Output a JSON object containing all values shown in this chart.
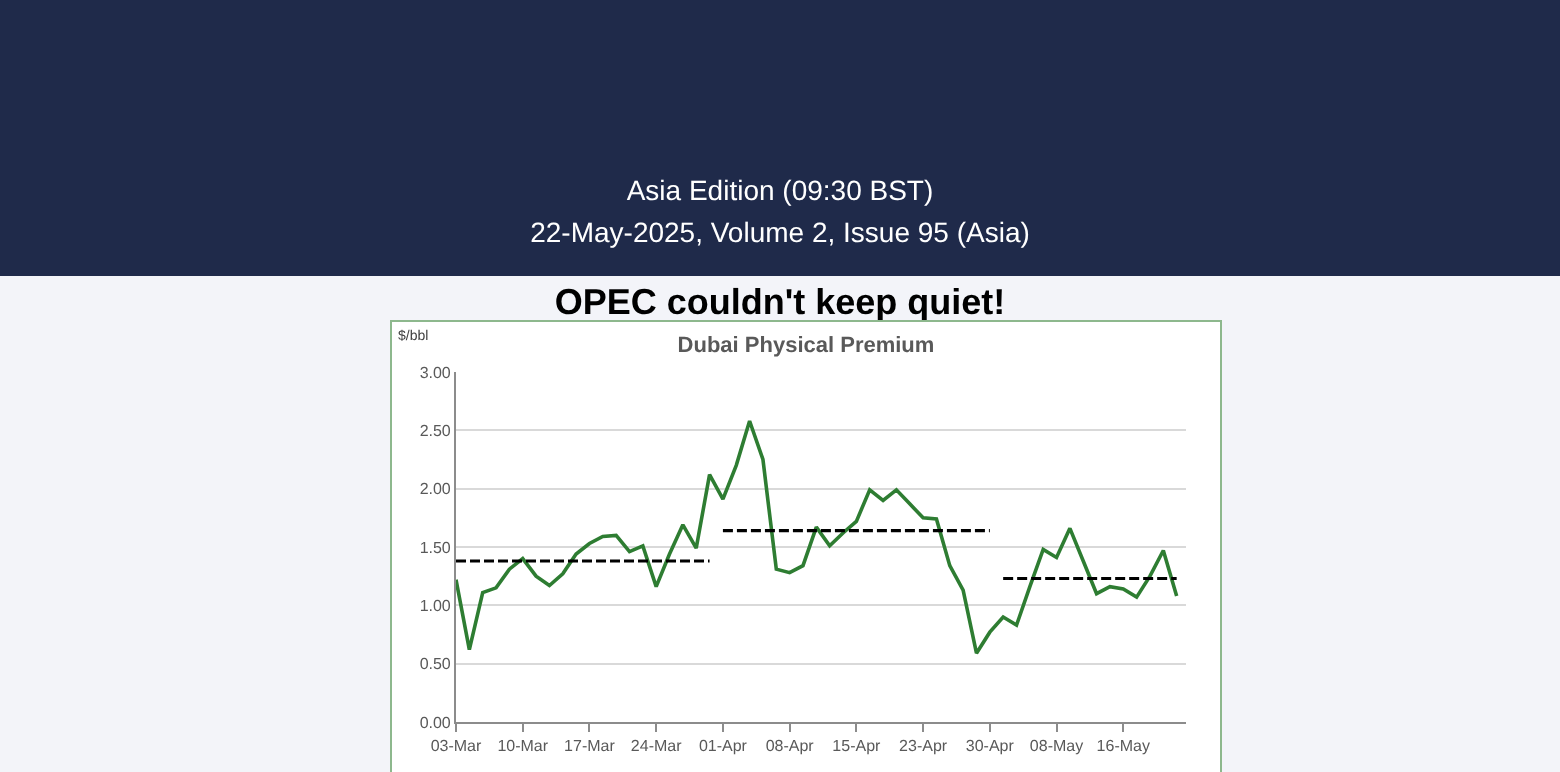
{
  "chart_data": {
    "type": "line",
    "title": "OPEC couldn't keep quiet!",
    "subtitle": "Dubai Physical Premium",
    "ylabel": "$/bbl",
    "annotations": [
      "Asia Edition (09:30 BST)",
      "22-May-2025, Volume 2, Issue 95 (Asia)"
    ],
    "categories": [
      "03-Mar",
      null,
      null,
      null,
      null,
      "10-Mar",
      null,
      null,
      null,
      null,
      "17-Mar",
      null,
      null,
      null,
      null,
      "24-Mar",
      null,
      null,
      null,
      null,
      "01-Apr",
      null,
      null,
      null,
      null,
      "08-Apr",
      null,
      null,
      null,
      null,
      "15-Apr",
      null,
      null,
      null,
      null,
      "23-Apr",
      null,
      null,
      null,
      null,
      "30-Apr",
      null,
      null,
      null,
      null,
      "08-May",
      null,
      null,
      null,
      null,
      "16-May",
      null,
      null,
      null,
      null
    ],
    "series": [
      {
        "color": "#2e7d32",
        "line_style": "solid",
        "values": [
          1.22,
          0.62,
          1.11,
          1.15,
          1.31,
          1.4,
          1.25,
          1.17,
          1.27,
          1.44,
          1.53,
          1.59,
          1.6,
          1.46,
          1.51,
          1.16,
          1.44,
          1.69,
          1.49,
          2.12,
          1.91,
          2.2,
          2.58,
          2.25,
          1.31,
          1.28,
          1.34,
          1.67,
          1.51,
          1.62,
          1.72,
          1.99,
          1.9,
          1.99,
          1.87,
          1.75,
          1.74,
          1.34,
          1.13,
          0.59,
          0.77,
          0.9,
          0.83,
          1.16,
          1.48,
          1.41,
          1.66,
          1.38,
          1.1,
          1.16,
          1.14,
          1.07,
          1.25,
          1.47,
          1.08
        ]
      },
      {
        "color": "#000000",
        "line_style": "dashed",
        "values": [
          1.38,
          1.38,
          1.38,
          1.38,
          1.38,
          1.38,
          1.38,
          1.38,
          1.38,
          1.38,
          1.38,
          1.38,
          1.38,
          1.38,
          1.38,
          1.38,
          1.38,
          1.38,
          1.38,
          1.38,
          null,
          null,
          null,
          null,
          null,
          null,
          null,
          null,
          null,
          null,
          null,
          null,
          null,
          null,
          null,
          null,
          null,
          null,
          null,
          null,
          null,
          null,
          null,
          null,
          null,
          null,
          null,
          null,
          null,
          null,
          null,
          null,
          null,
          null,
          null
        ]
      },
      {
        "color": "#000000",
        "line_style": "dashed",
        "values": [
          null,
          null,
          null,
          null,
          null,
          null,
          null,
          null,
          null,
          null,
          null,
          null,
          null,
          null,
          null,
          null,
          null,
          null,
          null,
          null,
          1.64,
          1.64,
          1.64,
          1.64,
          1.64,
          1.64,
          1.64,
          1.64,
          1.64,
          1.64,
          1.64,
          1.64,
          1.64,
          1.64,
          1.64,
          1.64,
          1.64,
          1.64,
          1.64,
          1.64,
          1.64,
          null,
          null,
          null,
          null,
          null,
          null,
          null,
          null,
          null,
          null,
          null,
          null,
          null,
          null
        ]
      },
      {
        "color": "#000000",
        "line_style": "dashed",
        "values": [
          null,
          null,
          null,
          null,
          null,
          null,
          null,
          null,
          null,
          null,
          null,
          null,
          null,
          null,
          null,
          null,
          null,
          null,
          null,
          null,
          null,
          null,
          null,
          null,
          null,
          null,
          null,
          null,
          null,
          null,
          null,
          null,
          null,
          null,
          null,
          null,
          null,
          null,
          null,
          null,
          null,
          1.23,
          1.23,
          1.23,
          1.23,
          1.23,
          1.23,
          1.23,
          1.23,
          1.23,
          1.23,
          1.23,
          1.23,
          1.23,
          1.23
        ]
      }
    ],
    "ylim": [
      0,
      3
    ],
    "yticks": [
      {
        "value": 0,
        "label": "0.00"
      },
      {
        "value": 0.5,
        "label": "0.50"
      },
      {
        "value": 1,
        "label": "1.00"
      },
      {
        "value": 1.5,
        "label": "1.50"
      },
      {
        "value": 2,
        "label": "2.00"
      },
      {
        "value": 2.5,
        "label": "2.50"
      },
      {
        "value": 3,
        "label": "3.00"
      }
    ],
    "grid": "y",
    "marker": "none"
  }
}
